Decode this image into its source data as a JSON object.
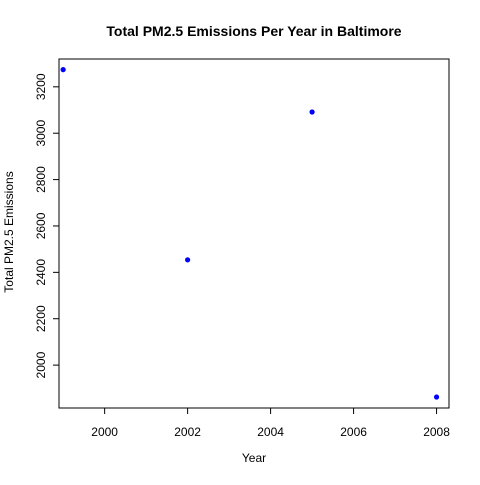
{
  "chart_data": {
    "type": "scatter",
    "title": "Total PM2.5 Emissions Per Year in Baltimore",
    "xlabel": "Year",
    "ylabel": "Total PM2.5 Emissions",
    "x": [
      1999,
      2002,
      2005,
      2008
    ],
    "y": [
      3274.2,
      2453.9,
      3091.4,
      1862.3
    ],
    "xlim": [
      1998.9,
      2008.3
    ],
    "ylim": [
      1815,
      3320
    ],
    "x_ticks": [
      2000,
      2002,
      2004,
      2006,
      2008
    ],
    "y_ticks": [
      2000,
      2200,
      2400,
      2600,
      2800,
      3000,
      3200
    ],
    "grid": false,
    "point_color": "#0000FF"
  }
}
